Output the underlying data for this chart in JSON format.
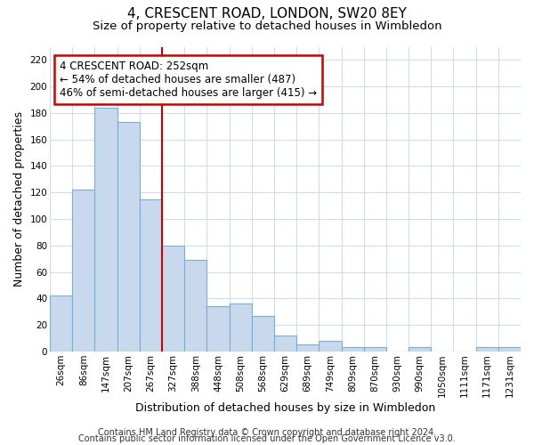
{
  "title": "4, CRESCENT ROAD, LONDON, SW20 8EY",
  "subtitle": "Size of property relative to detached houses in Wimbledon",
  "xlabel": "Distribution of detached houses by size in Wimbledon",
  "ylabel": "Number of detached properties",
  "bin_labels": [
    "26sqm",
    "86sqm",
    "147sqm",
    "207sqm",
    "267sqm",
    "327sqm",
    "388sqm",
    "448sqm",
    "508sqm",
    "568sqm",
    "629sqm",
    "689sqm",
    "749sqm",
    "809sqm",
    "870sqm",
    "930sqm",
    "990sqm",
    "1050sqm",
    "1111sqm",
    "1171sqm",
    "1231sqm"
  ],
  "bar_heights": [
    42,
    122,
    184,
    173,
    115,
    80,
    69,
    34,
    36,
    27,
    12,
    5,
    8,
    3,
    3,
    0,
    3,
    0,
    0,
    3,
    3
  ],
  "bar_color": "#c8d9ee",
  "bar_edge_color": "#7aafd4",
  "annotation_line1": "4 CRESCENT ROAD: 252sqm",
  "annotation_line2": "← 54% of detached houses are smaller (487)",
  "annotation_line3": "46% of semi-detached houses are larger (415) →",
  "vline_x_index": 4,
  "vline_color": "#cc0000",
  "annotation_box_color": "white",
  "annotation_box_edge_color": "#cc0000",
  "ylim": [
    0,
    230
  ],
  "yticks": [
    0,
    20,
    40,
    60,
    80,
    100,
    120,
    140,
    160,
    180,
    200,
    220
  ],
  "footer_line1": "Contains HM Land Registry data © Crown copyright and database right 2024.",
  "footer_line2": "Contains public sector information licensed under the Open Government Licence v3.0.",
  "background_color": "#ffffff",
  "grid_color": "#d0dce8",
  "title_fontsize": 11,
  "subtitle_fontsize": 9.5,
  "axis_label_fontsize": 9,
  "tick_fontsize": 7.5,
  "footer_fontsize": 7
}
